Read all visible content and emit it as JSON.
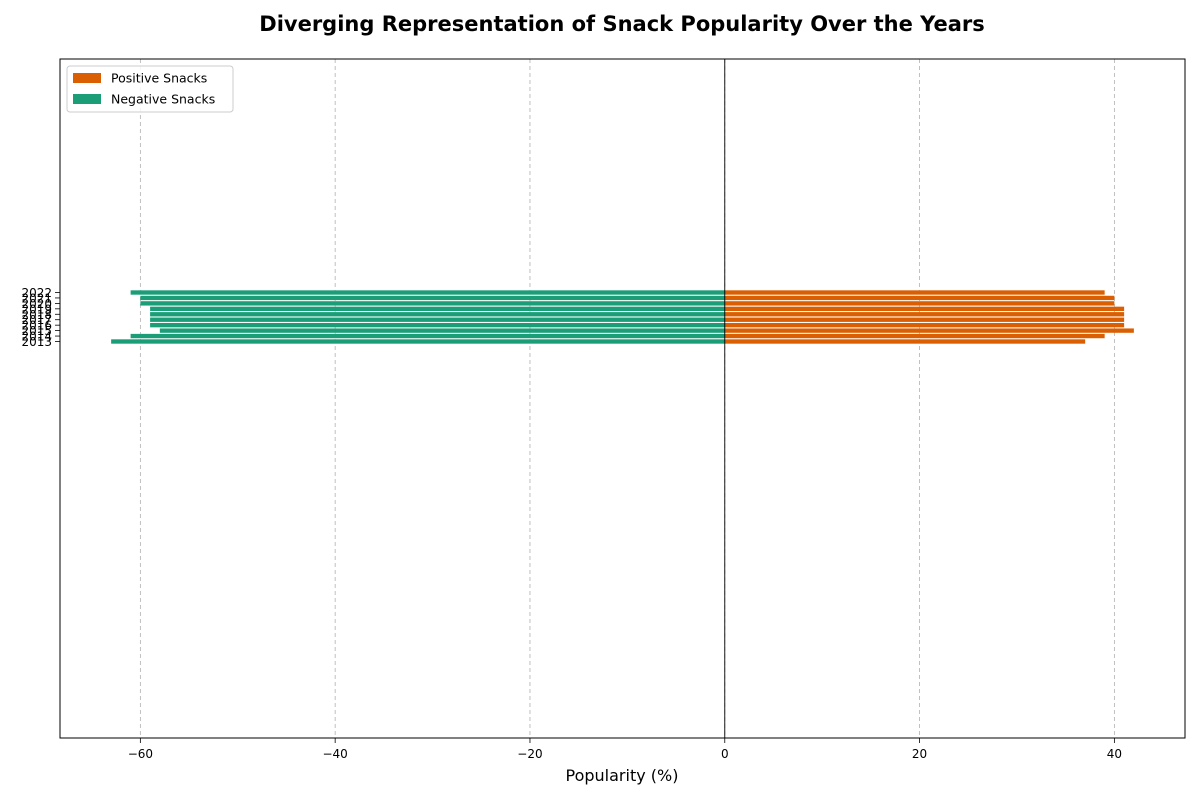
{
  "chart_data": {
    "type": "bar",
    "orientation": "horizontal",
    "title": "Diverging Representation of Snack Popularity Over the Years",
    "xlabel": "Popularity (%)",
    "ylabel": "",
    "categories": [
      "2013",
      "2014",
      "2015",
      "2016",
      "2017",
      "2018",
      "2019",
      "2020",
      "2021",
      "2022"
    ],
    "series": [
      {
        "name": "Positive Snacks",
        "color": "#d95f02",
        "values": [
          37,
          39,
          42,
          41,
          41,
          41,
          41,
          40,
          40,
          39
        ]
      },
      {
        "name": "Negative Snacks",
        "color": "#1b9e77",
        "values": [
          -63,
          -61,
          -58,
          -59,
          -59,
          -59,
          -59,
          -60,
          -60,
          -61
        ]
      }
    ],
    "xlim": [
      -68.25,
      47.25
    ],
    "xticks": [
      -60,
      -40,
      -20,
      0,
      20,
      40
    ],
    "xtick_labels": [
      "−60",
      "−40",
      "−20",
      "0",
      "20",
      "40"
    ],
    "grid": "x-dashed",
    "legend": "upper-left",
    "zero_line_color": "#000000"
  }
}
